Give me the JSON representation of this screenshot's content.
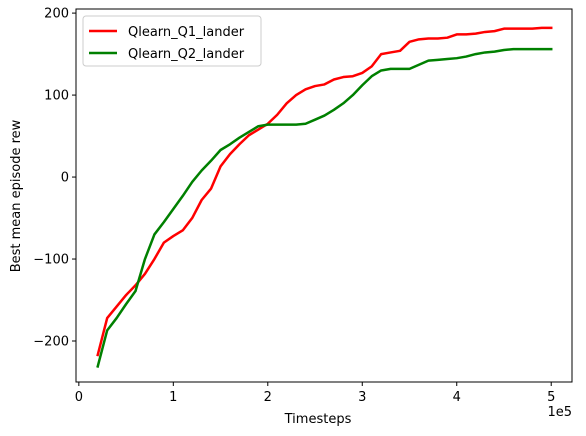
{
  "chart_data": {
    "type": "line",
    "title": "",
    "xlabel": "Timesteps",
    "ylabel": "Best mean episode rew",
    "x_offset_label": "1e5",
    "xlim": [
      -0.03,
      5.22
    ],
    "ylim": [
      -250,
      205
    ],
    "x_ticks": [
      0,
      1,
      2,
      3,
      4,
      5
    ],
    "x_tick_labels": [
      "0",
      "1",
      "2",
      "3",
      "4",
      "5"
    ],
    "y_ticks": [
      -200,
      -100,
      0,
      100,
      200
    ],
    "y_tick_labels": [
      "−200",
      "−100",
      "0",
      "100",
      "200"
    ],
    "grid": false,
    "legend_position": "top-left",
    "series": [
      {
        "name": "Qlearn_Q1_lander",
        "color": "#ff0000",
        "x": [
          0.2,
          0.3,
          0.4,
          0.5,
          0.6,
          0.7,
          0.8,
          0.9,
          1.0,
          1.1,
          1.2,
          1.3,
          1.4,
          1.5,
          1.6,
          1.7,
          1.8,
          1.9,
          2.0,
          2.1,
          2.2,
          2.3,
          2.4,
          2.5,
          2.6,
          2.7,
          2.8,
          2.9,
          3.0,
          3.1,
          3.2,
          3.3,
          3.4,
          3.5,
          3.6,
          3.7,
          3.8,
          3.9,
          4.0,
          4.1,
          4.2,
          4.3,
          4.4,
          4.5,
          4.6,
          4.7,
          4.8,
          4.9,
          5.0
        ],
        "y": [
          -217,
          -172,
          -158,
          -144,
          -132,
          -118,
          -100,
          -80,
          -72,
          -65,
          -50,
          -28,
          -14,
          13,
          28,
          40,
          51,
          58,
          65,
          76,
          90,
          100,
          107,
          111,
          113,
          119,
          122,
          123,
          127,
          135,
          150,
          152,
          154,
          165,
          168,
          169,
          169,
          170,
          174,
          174,
          175,
          177,
          178,
          181,
          181,
          181,
          181,
          182,
          182
        ]
      },
      {
        "name": "Qlearn_Q2_lander",
        "color": "#008000",
        "x": [
          0.2,
          0.3,
          0.4,
          0.5,
          0.6,
          0.7,
          0.8,
          0.9,
          1.0,
          1.1,
          1.2,
          1.3,
          1.4,
          1.5,
          1.6,
          1.7,
          1.8,
          1.9,
          2.0,
          2.1,
          2.2,
          2.3,
          2.4,
          2.5,
          2.6,
          2.7,
          2.8,
          2.9,
          3.0,
          3.1,
          3.2,
          3.3,
          3.4,
          3.5,
          3.6,
          3.7,
          3.8,
          3.9,
          4.0,
          4.1,
          4.2,
          4.3,
          4.4,
          4.5,
          4.6,
          4.7,
          4.8,
          4.9,
          5.0
        ],
        "y": [
          -231,
          -187,
          -172,
          -155,
          -139,
          -100,
          -70,
          -55,
          -39,
          -23,
          -6,
          8,
          20,
          33,
          40,
          48,
          55,
          62,
          64,
          64,
          64,
          64,
          65,
          70,
          75,
          82,
          90,
          100,
          112,
          123,
          130,
          132,
          132,
          132,
          137,
          142,
          143,
          144,
          145,
          147,
          150,
          152,
          153,
          155,
          156,
          156,
          156,
          156,
          156
        ]
      }
    ]
  }
}
